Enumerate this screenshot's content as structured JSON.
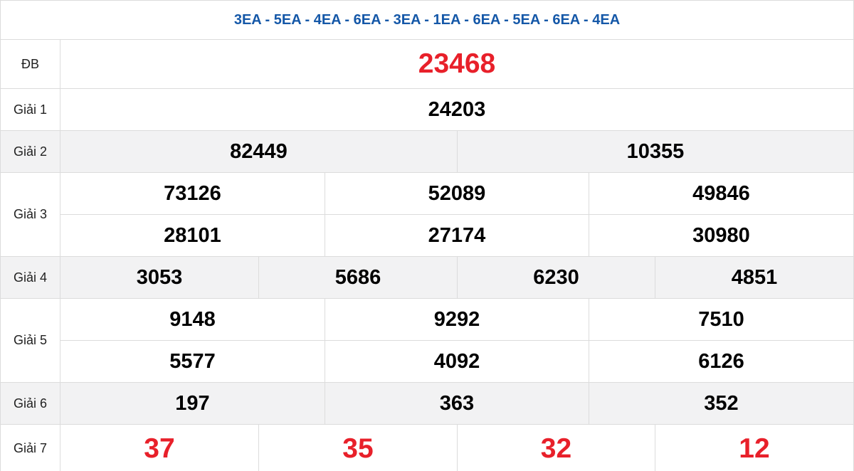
{
  "header": "3EA - 5EA - 4EA - 6EA - 3EA - 1EA - 6EA - 5EA - 6EA - 4EA",
  "rows": [
    {
      "label": "ĐB",
      "numbers": [
        "23468"
      ]
    },
    {
      "label": "Giải 1",
      "numbers": [
        "24203"
      ]
    },
    {
      "label": "Giải 2",
      "numbers": [
        "82449",
        "10355"
      ]
    },
    {
      "label": "Giải 3",
      "numbers": [
        "73126",
        "52089",
        "49846",
        "28101",
        "27174",
        "30980"
      ]
    },
    {
      "label": "Giải 4",
      "numbers": [
        "3053",
        "5686",
        "6230",
        "4851"
      ]
    },
    {
      "label": "Giải 5",
      "numbers": [
        "9148",
        "9292",
        "7510",
        "5577",
        "4092",
        "6126"
      ]
    },
    {
      "label": "Giải 6",
      "numbers": [
        "197",
        "363",
        "352"
      ]
    },
    {
      "label": "Giải 7",
      "numbers": [
        "37",
        "35",
        "32",
        "12"
      ]
    }
  ]
}
